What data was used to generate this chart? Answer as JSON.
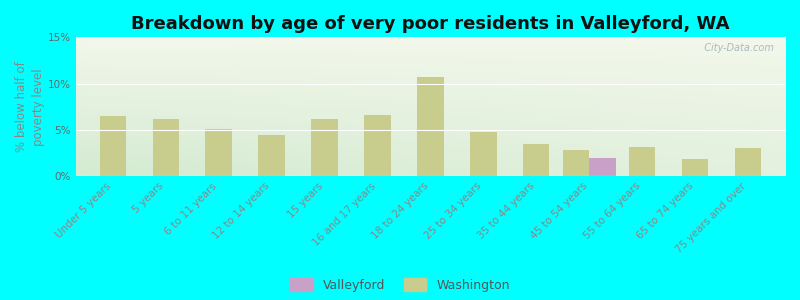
{
  "title": "Breakdown by age of very poor residents in Valleyford, WA",
  "ylabel": "% below half of\npoverty level",
  "background_color": "#00FFFF",
  "categories": [
    "Under 5 years",
    "5 years",
    "6 to 11 years",
    "12 to 14 years",
    "15 years",
    "16 and 17 years",
    "18 to 24 years",
    "25 to 34 years",
    "35 to 44 years",
    "45 to 54 years",
    "55 to 64 years",
    "65 to 74 years",
    "75 years and over"
  ],
  "valleyford_values": [
    0,
    0,
    0,
    0,
    0,
    0,
    0,
    0,
    0,
    2.0,
    0,
    0,
    0
  ],
  "washington_values": [
    6.5,
    6.2,
    5.1,
    4.4,
    6.2,
    6.6,
    10.7,
    4.8,
    3.5,
    2.8,
    3.1,
    1.9,
    3.0
  ],
  "valleyford_color": "#c8a0c8",
  "washington_color": "#c8cc8c",
  "ylim": [
    0,
    15
  ],
  "yticks": [
    0,
    5,
    10,
    15
  ],
  "ytick_labels": [
    "0%",
    "5%",
    "10%",
    "15%"
  ],
  "watermark": "  City-Data.com",
  "bar_width": 0.5,
  "title_fontsize": 13,
  "axis_label_fontsize": 8.5,
  "tick_fontsize": 7.5,
  "grad_bottom_left": "#c8d8a0",
  "grad_top_left": "#e8f0d0",
  "grad_top_right": "#f5f5ee"
}
